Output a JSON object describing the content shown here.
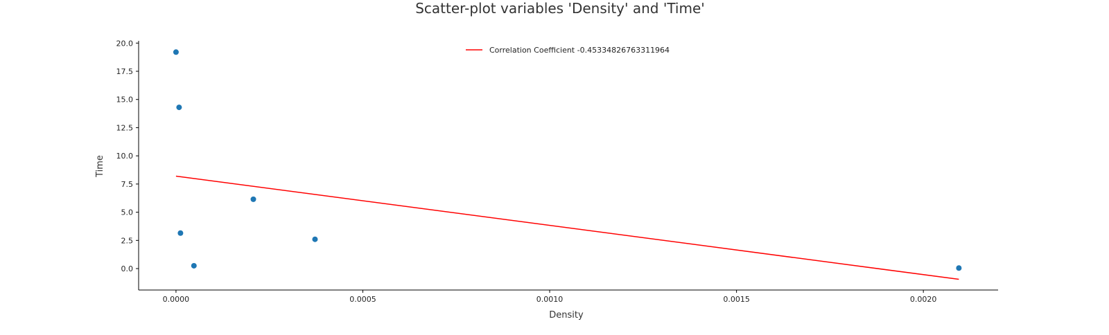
{
  "chart_data": {
    "type": "scatter",
    "title": "Scatter-plot variables 'Density' and 'Time'",
    "xlabel": "Density",
    "ylabel": "Time",
    "xlim": [
      -0.0001,
      0.0022
    ],
    "ylim": [
      -1.9,
      20.2
    ],
    "x_ticks": [
      0.0,
      0.0005,
      0.001,
      0.0015,
      0.002
    ],
    "x_tick_labels": [
      "0.0000",
      "0.0005",
      "0.0010",
      "0.0015",
      "0.0020"
    ],
    "y_ticks": [
      0.0,
      2.5,
      5.0,
      7.5,
      10.0,
      12.5,
      15.0,
      17.5,
      20.0
    ],
    "y_tick_labels": [
      "0.0",
      "2.5",
      "5.0",
      "7.5",
      "10.0",
      "12.5",
      "15.0",
      "17.5",
      "20.0"
    ],
    "grid": false,
    "legend_position": "top-center",
    "series": [
      {
        "type": "scatter",
        "color": "#1f77b4",
        "points": [
          {
            "x": 0.0,
            "y": 19.2
          },
          {
            "x": 8.3e-06,
            "y": 14.3
          },
          {
            "x": 1.2e-05,
            "y": 3.15
          },
          {
            "x": 4.8e-05,
            "y": 0.25
          },
          {
            "x": 0.000207,
            "y": 6.15
          },
          {
            "x": 0.000372,
            "y": 2.6
          },
          {
            "x": 0.002095,
            "y": 0.05
          }
        ]
      },
      {
        "name": "Correlation Coefficient -0.45334826763311964",
        "type": "line",
        "color": "#ff0000",
        "points": [
          {
            "x": 0.0,
            "y": 8.2
          },
          {
            "x": 0.002095,
            "y": -0.95
          }
        ]
      }
    ]
  }
}
